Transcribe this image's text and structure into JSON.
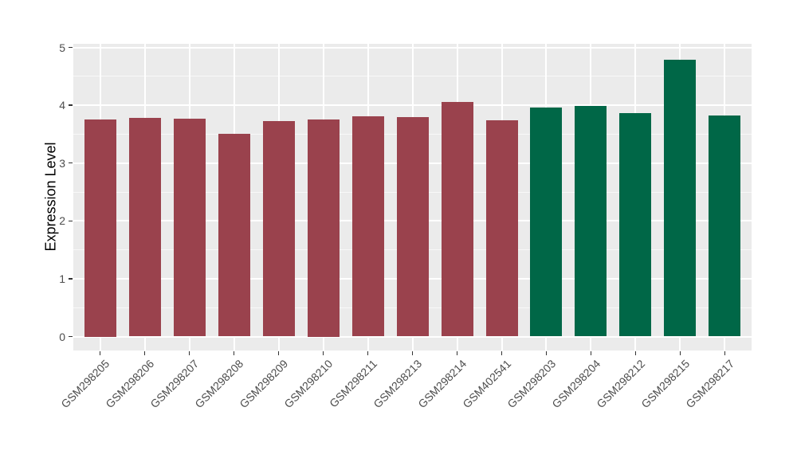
{
  "figure": {
    "background": "#FFFFFF",
    "panel_background": "#EBEBEB",
    "grid_color": "#FFFFFF",
    "tick_color": "#333333",
    "tick_label_color": "#4D4D4D",
    "axis_title_color": "#000000"
  },
  "chart_data": {
    "type": "bar",
    "title": "",
    "xlabel": "",
    "ylabel": "Expression Level",
    "ylim": [
      0,
      5.05
    ],
    "yticks": [
      0,
      1,
      2,
      3,
      4,
      5
    ],
    "grid": true,
    "legend_position": "none",
    "categories": [
      "GSM298205",
      "GSM298206",
      "GSM298207",
      "GSM298208",
      "GSM298209",
      "GSM298210",
      "GSM298211",
      "GSM298213",
      "GSM298214",
      "GSM402541",
      "GSM298203",
      "GSM298204",
      "GSM298212",
      "GSM298215",
      "GSM298217"
    ],
    "values": [
      3.75,
      3.78,
      3.77,
      3.5,
      3.72,
      3.75,
      3.81,
      3.8,
      4.05,
      3.74,
      3.96,
      3.99,
      3.86,
      4.79,
      3.82
    ],
    "bar_colors": [
      "#9A424D",
      "#9A424D",
      "#9A424D",
      "#9A424D",
      "#9A424D",
      "#9A424D",
      "#9A424D",
      "#9A424D",
      "#9A424D",
      "#9A424D",
      "#006747",
      "#006747",
      "#006747",
      "#006747",
      "#006747"
    ],
    "palette": {
      "maroon_group": "#9A424D",
      "green_group": "#006747"
    }
  }
}
